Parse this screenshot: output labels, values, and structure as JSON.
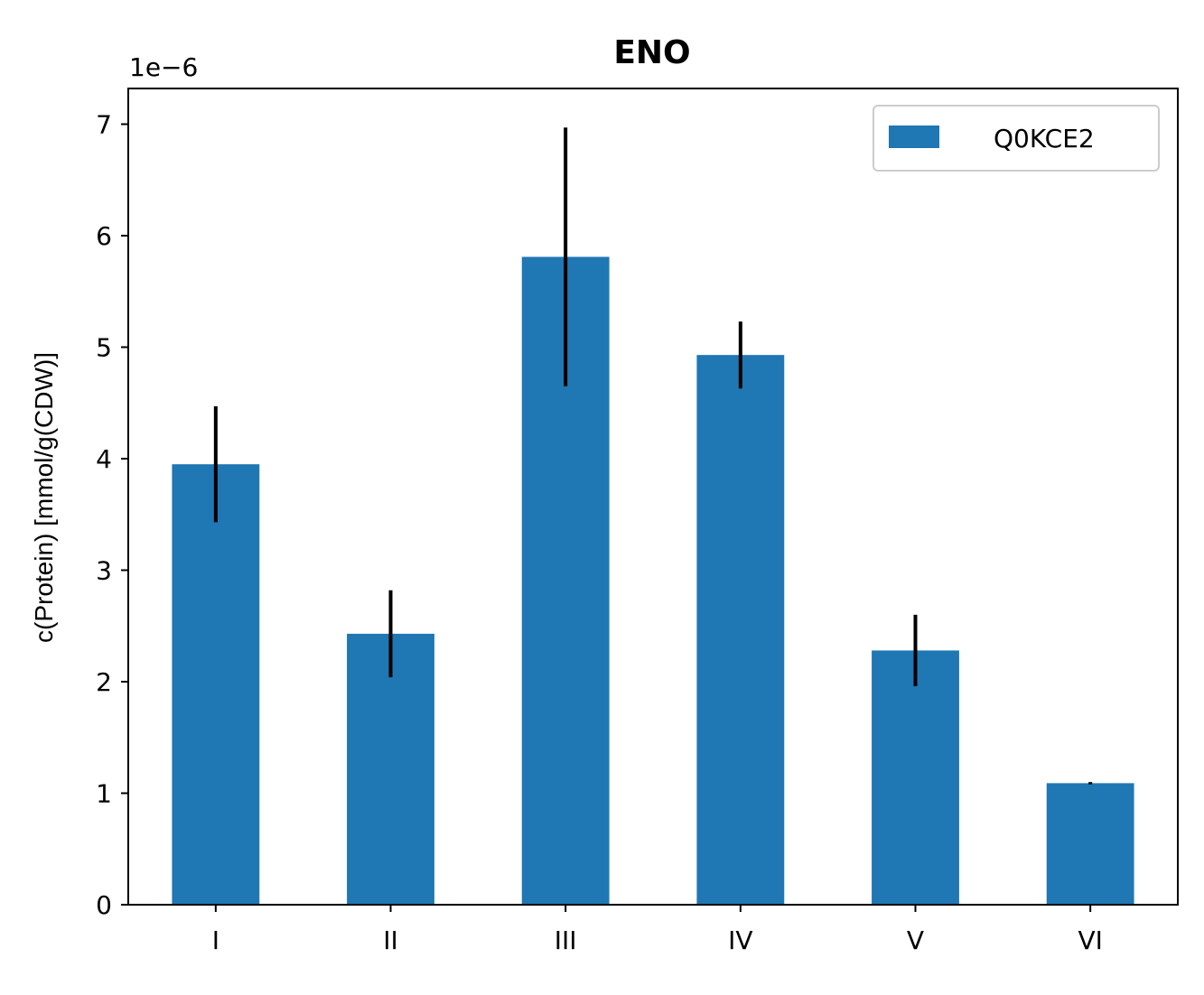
{
  "chart_data": {
    "type": "bar",
    "title": "ENO",
    "xlabel": "",
    "ylabel": "c(Protein) [mmol/g(CDW)]",
    "y_scale_label": "1e−6",
    "categories": [
      "I",
      "II",
      "III",
      "IV",
      "V",
      "VI"
    ],
    "series": [
      {
        "name": "Q0KCE2",
        "values": [
          3.95e-06,
          2.43e-06,
          5.81e-06,
          4.93e-06,
          2.28e-06,
          1.09e-06
        ],
        "errors": [
          5.2e-07,
          3.9e-07,
          1.16e-06,
          3e-07,
          3.2e-07,
          1e-08
        ],
        "color": "#1f77b4"
      }
    ],
    "ylim": [
      0,
      7.32e-06
    ],
    "yticks": [
      0,
      1,
      2,
      3,
      4,
      5,
      6,
      7
    ],
    "ytick_multiplier": 1e-06,
    "error_color": "#000000",
    "legend_position": "top-right",
    "grid": false
  }
}
